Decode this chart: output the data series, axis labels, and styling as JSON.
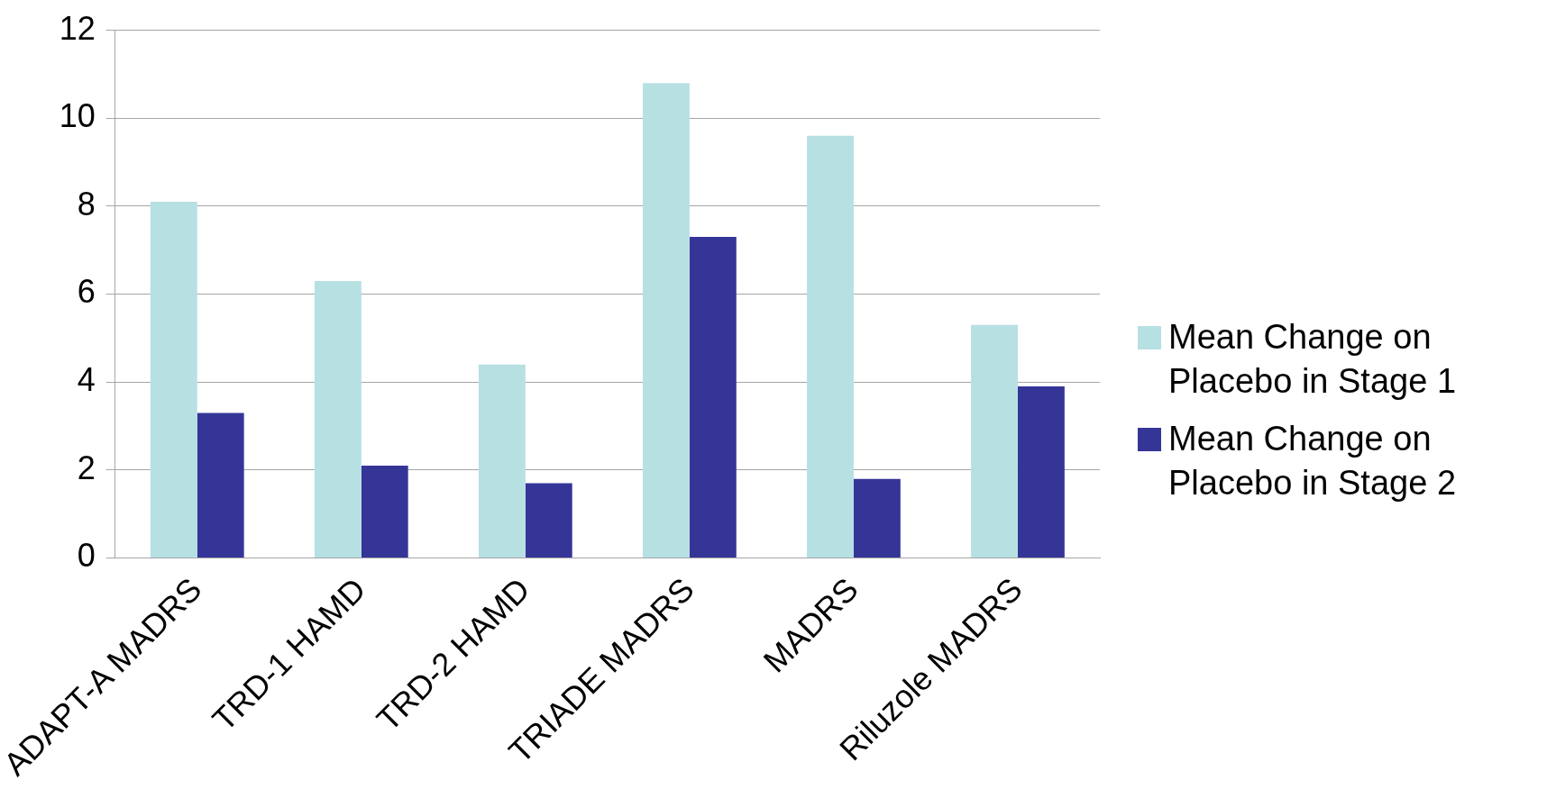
{
  "chart_data": {
    "type": "bar",
    "categories": [
      "ADAPT-A MADRS",
      "TRD-1 HAMD",
      "TRD-2 HAMD",
      "TRIADE MADRS",
      "MADRS",
      "Riluzole MADRS"
    ],
    "series": [
      {
        "name": "Mean Change on Placebo in Stage 1",
        "color": "#b7e0e3",
        "values": [
          8.1,
          6.3,
          4.4,
          10.8,
          9.6,
          5.3
        ]
      },
      {
        "name": "Mean Change on Placebo in Stage 2",
        "color": "#353598",
        "values": [
          3.3,
          2.1,
          1.7,
          7.3,
          1.8,
          3.9
        ]
      }
    ],
    "ylim": [
      0,
      12
    ],
    "yticks": [
      0,
      2,
      4,
      6,
      8,
      10,
      12
    ],
    "grid": "y",
    "legend": "right"
  }
}
